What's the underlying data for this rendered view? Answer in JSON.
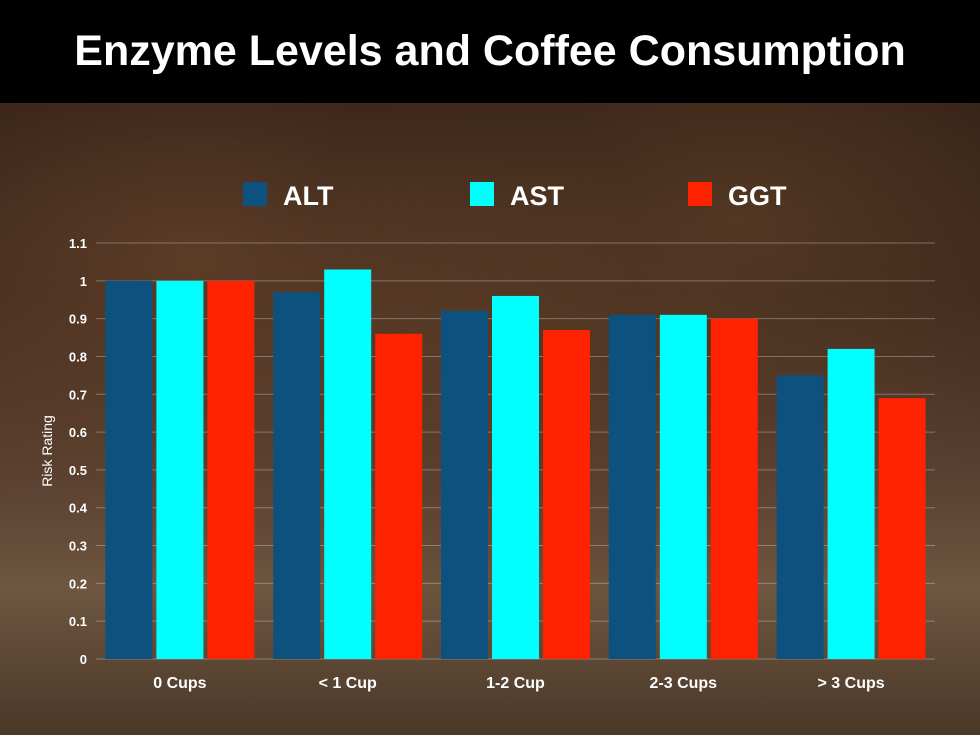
{
  "chart_data": {
    "type": "bar",
    "title": "Enzyme Levels and Coffee Consumption",
    "xlabel": "",
    "ylabel": "Risk Rating",
    "ylim": [
      0,
      1.1
    ],
    "yticks": [
      "0",
      "0.1",
      "0.2",
      "0.3",
      "0.4",
      "0.5",
      "0.6",
      "0.7",
      "0.8",
      "0.9",
      "1",
      "1.1"
    ],
    "grid": true,
    "legend": "top",
    "categories": [
      "0 Cups",
      "< 1 Cup",
      "1-2 Cup",
      "2-3 Cups",
      "> 3 Cups"
    ],
    "series": [
      {
        "name": "ALT",
        "color": "#0d527e",
        "values": [
          1.0,
          0.97,
          0.92,
          0.91,
          0.75
        ]
      },
      {
        "name": "AST",
        "color": "#00ffff",
        "values": [
          1.0,
          1.03,
          0.96,
          0.91,
          0.82
        ]
      },
      {
        "name": "GGT",
        "color": "#ff2200",
        "values": [
          1.0,
          0.86,
          0.87,
          0.9,
          0.69
        ]
      }
    ]
  }
}
